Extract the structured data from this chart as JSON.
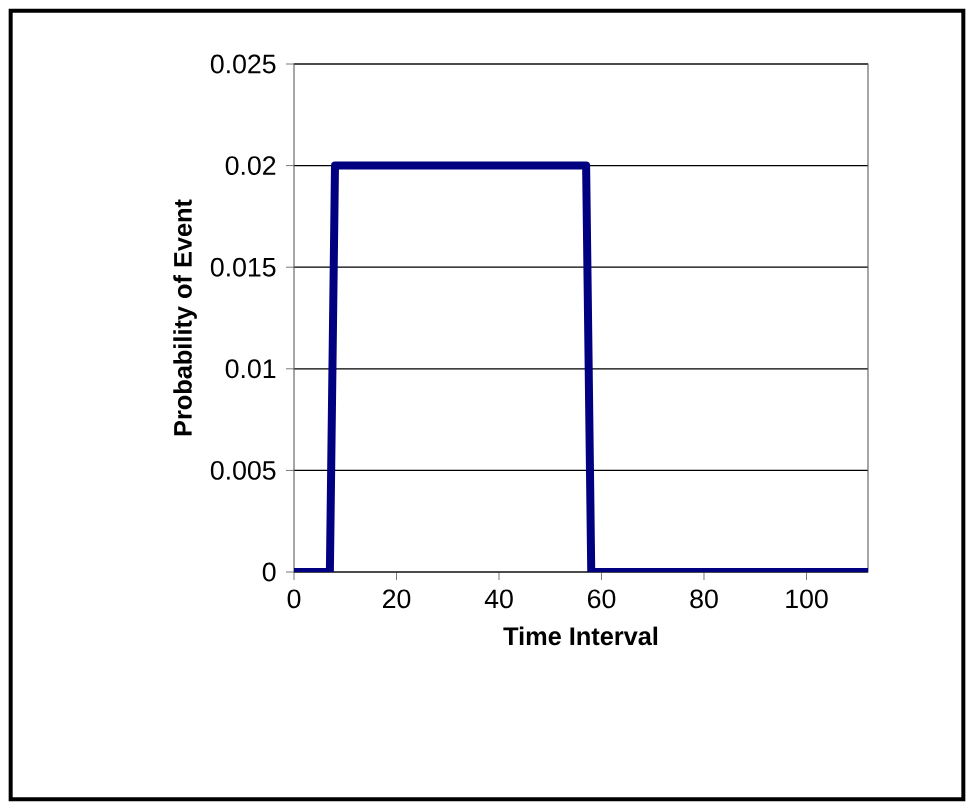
{
  "chart_data": {
    "type": "line",
    "xlabel": "Time Interval",
    "ylabel": "Probability of Event",
    "x": [
      0,
      7,
      8,
      57,
      58,
      112
    ],
    "values": [
      0,
      0,
      0.02,
      0.02,
      0,
      0
    ],
    "color": "#000080",
    "line_style": "solid",
    "marker": "none",
    "xlim": [
      0,
      112
    ],
    "ylim": [
      0,
      0.025
    ],
    "xticks": [
      0,
      20,
      40,
      60,
      80,
      100
    ],
    "yticks": [
      0,
      0.005,
      0.01,
      0.015,
      0.02,
      0.025
    ],
    "grid": "y"
  }
}
